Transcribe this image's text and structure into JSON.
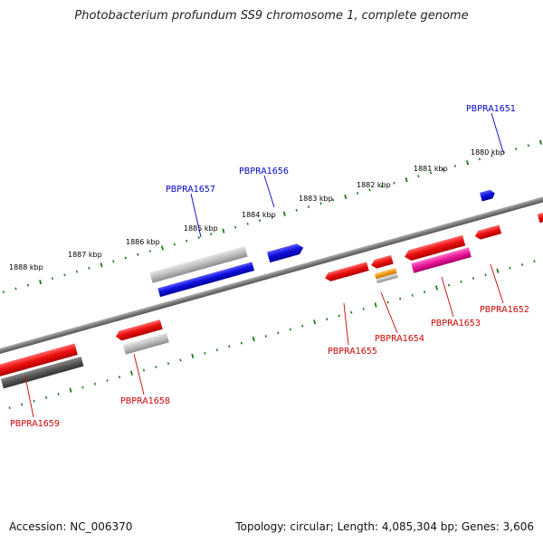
{
  "title": "Photobacterium profundum SS9 chromosome 1, complete genome",
  "footer": {
    "accession": "Accession: NC_006370",
    "summary": "Topology: circular; Length: 4,085,304 bp; Genes: 3,606"
  },
  "colors": {
    "backbone": "#7a7a7a",
    "ticks": "#1f7a1f",
    "forward_label": "#0000cc",
    "reverse_label": "#cc0000",
    "red": "#ee1111",
    "blue": "#1111dd",
    "gray": "#bdbdbd",
    "dark_gray": "#555555",
    "orange": "#f39c12",
    "pink": "#e8169a"
  },
  "ruler_labels": [
    "1888 kbp",
    "1887 kbp",
    "1886 kbp",
    "1885 kbp",
    "1884 kbp",
    "1883 kbp",
    "1882 kbp",
    "1881 kbp",
    "1880 kbp"
  ],
  "gene_labels": {
    "forward": [
      "PBPRA1651",
      "PBPRA1656",
      "PBPRA1657"
    ],
    "reverse": [
      "PBPRA1652",
      "PBPRA1653",
      "PBPRA1654",
      "PBPRA1655",
      "PBPRA1658",
      "PBPRA1659"
    ]
  }
}
